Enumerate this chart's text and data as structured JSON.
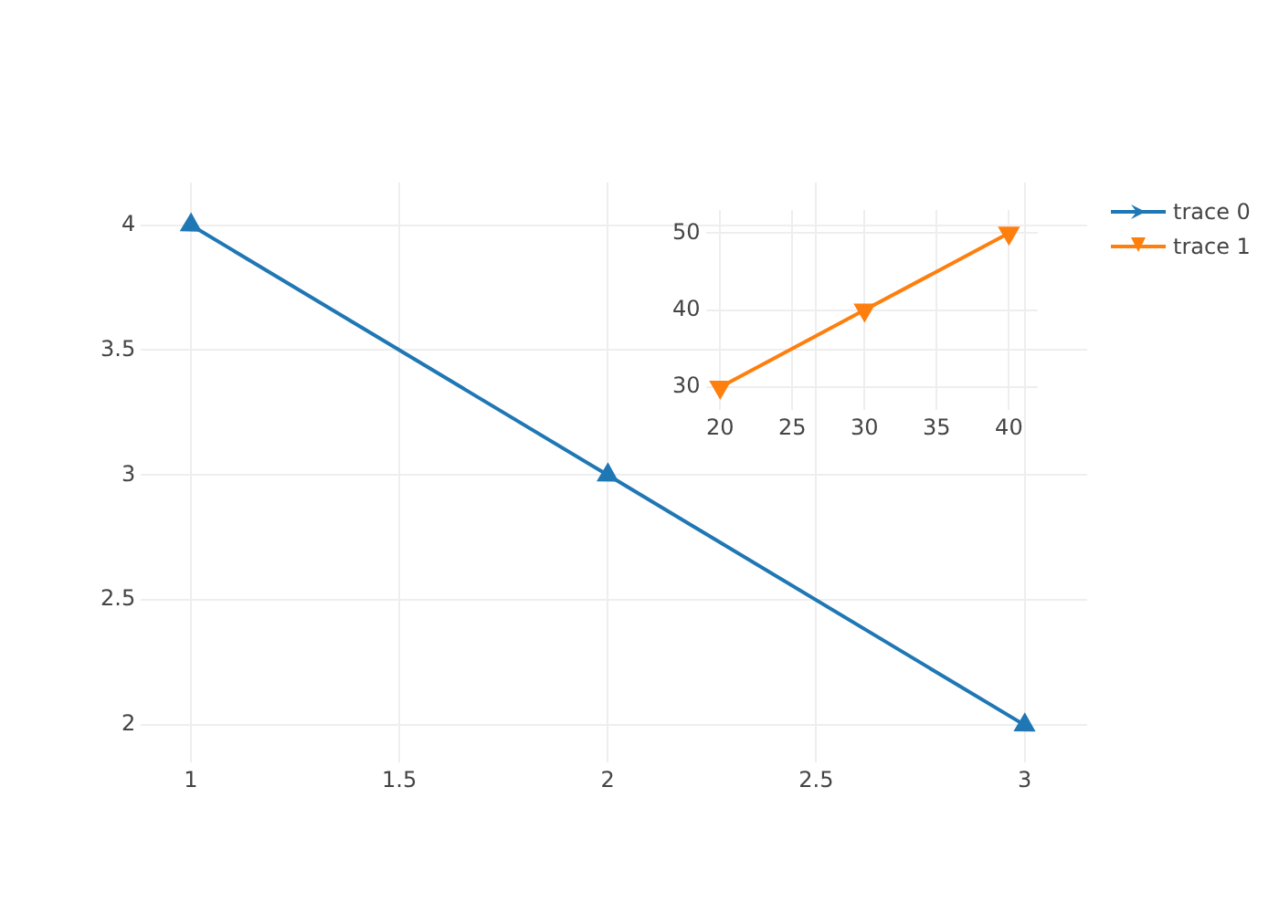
{
  "chart_data": [
    {
      "type": "line",
      "x": [
        1,
        2,
        3
      ],
      "series": [
        {
          "name": "trace 0",
          "color": "#1f77b4",
          "values": [
            4,
            3,
            2
          ]
        }
      ],
      "xlim": [
        0.88,
        3.15
      ],
      "ylim": [
        1.85,
        4.17
      ],
      "xticks": [
        1,
        1.5,
        2,
        2.5,
        3
      ],
      "yticks": [
        2,
        2.5,
        3,
        3.5,
        4
      ],
      "grid": true,
      "legend": "top right",
      "marker": "triangle",
      "line_style": "solid"
    },
    {
      "type": "line",
      "x": [
        20,
        30,
        40
      ],
      "series": [
        {
          "name": "trace 1",
          "color": "#ff7f0e",
          "values": [
            30,
            40,
            50
          ]
        }
      ],
      "xlim": [
        19,
        42
      ],
      "ylim": [
        27,
        53
      ],
      "xticks": [
        20,
        25,
        30,
        35,
        40
      ],
      "yticks": [
        30,
        40,
        50
      ],
      "grid": true,
      "legend": "top right",
      "marker": "triangle-down",
      "line_style": "solid"
    }
  ]
}
